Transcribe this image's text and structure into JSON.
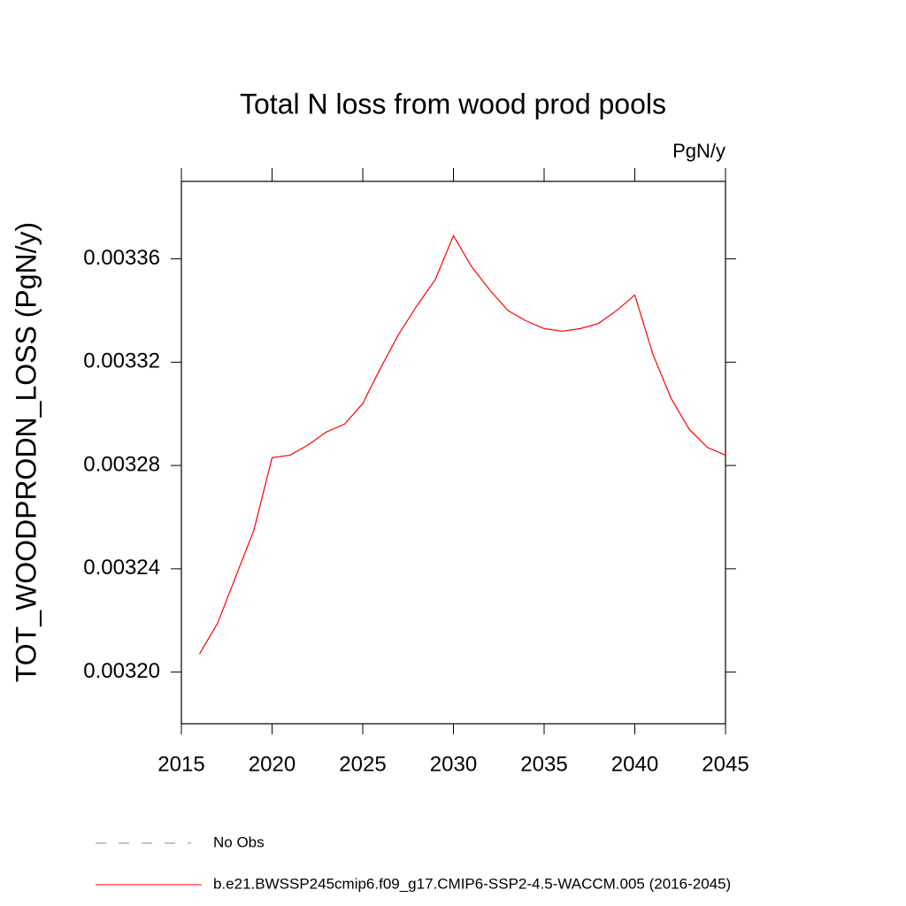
{
  "chart_data": {
    "type": "line",
    "title": "Total N loss from wood prod pools",
    "units": "PgN/y",
    "y_label": "TOT_WOODPRODN_LOSS  (PgN/y)",
    "x": [
      2016,
      2017,
      2018,
      2019,
      2020,
      2021,
      2022,
      2023,
      2024,
      2025,
      2026,
      2027,
      2028,
      2029,
      2030,
      2031,
      2032,
      2033,
      2034,
      2035,
      2036,
      2037,
      2038,
      2039,
      2040,
      2041,
      2042,
      2043,
      2044,
      2045
    ],
    "series": [
      {
        "name": "b.e21.BWSSP245cmip6.f09_g17.CMIP6-SSP2-4.5-WACCM.005 (2016-2045)",
        "color": "#ff0000",
        "values": [
          0.003207,
          0.003219,
          0.003237,
          0.003255,
          0.003283,
          0.003284,
          0.003288,
          0.003293,
          0.003296,
          0.003304,
          0.003318,
          0.003331,
          0.003342,
          0.003352,
          0.003369,
          0.003357,
          0.003348,
          0.00334,
          0.003336,
          0.003333,
          0.003332,
          0.003333,
          0.003335,
          0.00334,
          0.003346,
          0.003323,
          0.003306,
          0.003294,
          0.003287,
          0.003284
        ]
      }
    ],
    "reference_legend": {
      "name": "No Obs",
      "color": "#8080c0",
      "dashed": true
    },
    "xlim": [
      2015,
      2045
    ],
    "xticks": [
      2015,
      2020,
      2025,
      2030,
      2035,
      2040,
      2045
    ],
    "ylim": [
      0.00318,
      0.00339
    ],
    "yticks": [
      {
        "value": 0.0032,
        "label": "0.00320"
      },
      0.00324,
      0.00328,
      0.00332,
      0.00336
    ],
    "grid": false
  }
}
